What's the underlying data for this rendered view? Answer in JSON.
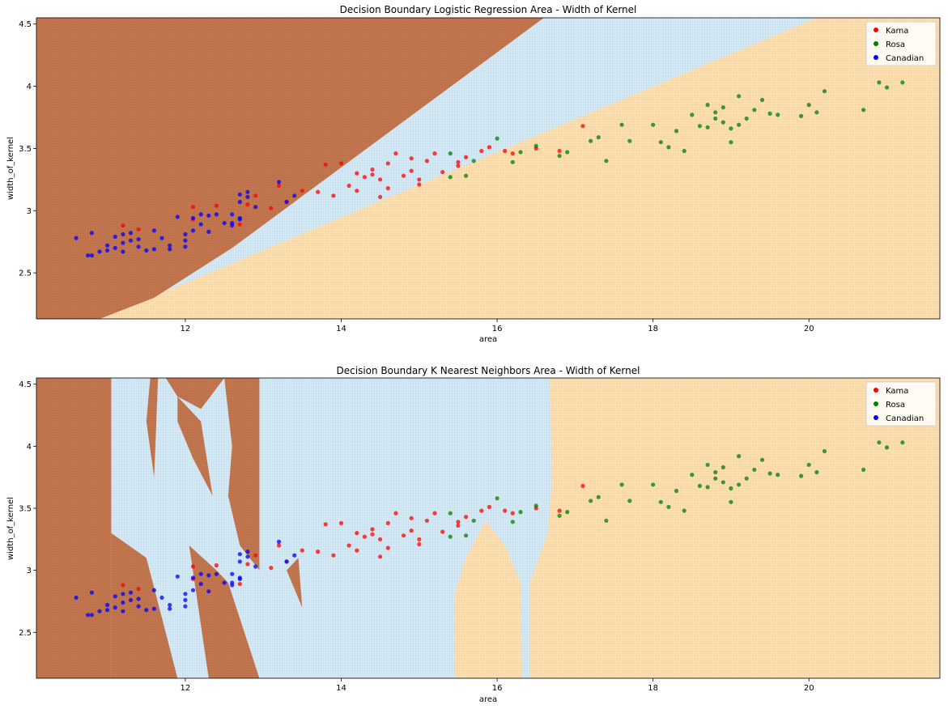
{
  "colors": {
    "kama": "#ff0000",
    "rosa": "#008000",
    "canadian": "#0000ff",
    "region_kama": "#c4764f",
    "region_rosa": "#ffe0b0",
    "region_canadian": "#d4ebf7"
  },
  "chart_data": [
    {
      "type": "scatter",
      "title": "Decision Boundary Logistic Regression Area - Width of Kernel",
      "xlabel": "area",
      "ylabel": "width_of_kernel",
      "xlim": [
        10.09,
        21.68
      ],
      "ylim": [
        2.13,
        4.55
      ],
      "xticks": [
        12,
        14,
        16,
        18,
        20
      ],
      "yticks": [
        2.5,
        3.0,
        3.5,
        4.0,
        4.5
      ],
      "grid": false,
      "legend": {
        "placement": "top-right",
        "entries": [
          "Kama",
          "Rosa",
          "Canadian"
        ]
      },
      "decision_regions": {
        "model": "logistic_regression",
        "kama_canadian_boundary": [
          [
            12.6,
            2.7
          ],
          [
            16.6,
            4.55
          ]
        ],
        "kama_rosa_boundary": [
          [
            10.9,
            2.13
          ],
          [
            20.1,
            4.55
          ]
        ]
      }
    },
    {
      "type": "scatter",
      "title": "Decision Boundary K Nearest Neighbors Area - Width of Kernel",
      "xlabel": "area",
      "ylabel": "width_of_kernel",
      "xlim": [
        10.09,
        21.68
      ],
      "ylim": [
        2.13,
        4.55
      ],
      "xticks": [
        12,
        14,
        16,
        18,
        20
      ],
      "yticks": [
        2.5,
        3.0,
        3.5,
        4.0,
        4.5
      ],
      "grid": false,
      "legend": {
        "placement": "top-right",
        "entries": [
          "Kama",
          "Rosa",
          "Canadian"
        ]
      },
      "decision_regions": {
        "model": "k_nearest_neighbors",
        "canadian_polygons": [
          [
            [
              10.09,
              4.55
            ],
            [
              11.0,
              4.55
            ],
            [
              11.0,
              2.13
            ],
            [
              10.09,
              2.13
            ]
          ],
          [
            [
              11.0,
              4.55
            ],
            [
              12.9,
              4.55
            ],
            [
              12.9,
              2.9
            ],
            [
              13.2,
              3.05
            ],
            [
              13.4,
              2.8
            ],
            [
              13.2,
              2.13
            ],
            [
              12.9,
              2.13
            ],
            [
              12.6,
              2.9
            ],
            [
              12.1,
              2.9
            ],
            [
              11.8,
              2.13
            ],
            [
              11.0,
              2.13
            ]
          ]
        ],
        "kama_polygons": [
          [
            [
              10.09,
              4.55
            ],
            [
              11.0,
              4.55
            ],
            [
              11.0,
              2.13
            ],
            [
              10.09,
              2.13
            ]
          ],
          [
            [
              11.55,
              4.55
            ],
            [
              11.7,
              4.55
            ],
            [
              11.55,
              3.9
            ],
            [
              11.55,
              4.55
            ]
          ]
        ],
        "rosa_polygons": [
          [
            [
              16.7,
              4.55
            ],
            [
              21.68,
              4.55
            ],
            [
              21.68,
              2.13
            ],
            [
              16.4,
              2.13
            ],
            [
              16.4,
              3.3
            ],
            [
              16.7,
              3.6
            ]
          ],
          [
            [
              15.45,
              2.13
            ],
            [
              16.3,
              2.13
            ],
            [
              16.3,
              3.0
            ],
            [
              15.9,
              3.3
            ],
            [
              15.45,
              2.9
            ]
          ]
        ]
      }
    }
  ],
  "scatter_points": {
    "kama": [
      [
        11.2,
        2.88
      ],
      [
        11.4,
        2.85
      ],
      [
        12.1,
        2.93
      ],
      [
        12.1,
        3.03
      ],
      [
        12.4,
        3.04
      ],
      [
        12.7,
        2.89
      ],
      [
        12.8,
        3.05
      ],
      [
        12.9,
        3.12
      ],
      [
        13.1,
        3.02
      ],
      [
        13.2,
        3.2
      ],
      [
        13.3,
        3.07
      ],
      [
        13.5,
        3.16
      ],
      [
        13.8,
        3.37
      ],
      [
        14.0,
        3.38
      ],
      [
        13.9,
        3.12
      ],
      [
        14.1,
        3.2
      ],
      [
        14.2,
        3.16
      ],
      [
        14.3,
        3.27
      ],
      [
        14.4,
        3.33
      ],
      [
        14.5,
        3.25
      ],
      [
        14.6,
        3.18
      ],
      [
        14.7,
        3.46
      ],
      [
        14.8,
        3.28
      ],
      [
        14.9,
        3.32
      ],
      [
        15.0,
        3.25
      ],
      [
        15.1,
        3.4
      ],
      [
        15.2,
        3.46
      ],
      [
        15.3,
        3.31
      ],
      [
        15.5,
        3.36
      ],
      [
        15.6,
        3.43
      ],
      [
        15.8,
        3.48
      ],
      [
        15.9,
        3.51
      ],
      [
        16.1,
        3.48
      ],
      [
        16.2,
        3.46
      ],
      [
        16.5,
        3.5
      ],
      [
        16.8,
        3.48
      ],
      [
        17.1,
        3.68
      ],
      [
        14.5,
        3.11
      ],
      [
        14.2,
        3.3
      ],
      [
        15.0,
        3.21
      ],
      [
        15.5,
        3.39
      ],
      [
        14.6,
        3.38
      ],
      [
        14.9,
        3.42
      ],
      [
        13.7,
        3.15
      ],
      [
        14.4,
        3.29
      ]
    ],
    "rosa": [
      [
        15.4,
        3.46
      ],
      [
        15.4,
        3.27
      ],
      [
        15.6,
        3.28
      ],
      [
        15.7,
        3.4
      ],
      [
        16.0,
        3.58
      ],
      [
        16.2,
        3.39
      ],
      [
        16.3,
        3.47
      ],
      [
        16.5,
        3.52
      ],
      [
        16.8,
        3.44
      ],
      [
        16.9,
        3.47
      ],
      [
        17.2,
        3.56
      ],
      [
        17.3,
        3.59
      ],
      [
        17.4,
        3.4
      ],
      [
        17.6,
        3.69
      ],
      [
        17.7,
        3.56
      ],
      [
        18.0,
        3.69
      ],
      [
        18.1,
        3.55
      ],
      [
        18.2,
        3.51
      ],
      [
        18.3,
        3.64
      ],
      [
        18.4,
        3.48
      ],
      [
        18.5,
        3.77
      ],
      [
        18.6,
        3.68
      ],
      [
        18.7,
        3.85
      ],
      [
        18.8,
        3.79
      ],
      [
        18.9,
        3.83
      ],
      [
        19.0,
        3.66
      ],
      [
        19.0,
        3.55
      ],
      [
        19.1,
        3.92
      ],
      [
        19.2,
        3.74
      ],
      [
        19.3,
        3.81
      ],
      [
        19.4,
        3.89
      ],
      [
        19.5,
        3.78
      ],
      [
        19.6,
        3.77
      ],
      [
        19.9,
        3.76
      ],
      [
        20.0,
        3.85
      ],
      [
        20.1,
        3.79
      ],
      [
        20.2,
        3.96
      ],
      [
        20.7,
        3.81
      ],
      [
        20.9,
        4.03
      ],
      [
        21.0,
        3.99
      ],
      [
        21.2,
        4.03
      ],
      [
        18.7,
        3.67
      ],
      [
        18.8,
        3.74
      ],
      [
        18.9,
        3.71
      ],
      [
        19.1,
        3.69
      ]
    ],
    "canadian": [
      [
        10.6,
        2.78
      ],
      [
        10.8,
        2.64
      ],
      [
        10.8,
        2.82
      ],
      [
        10.9,
        2.67
      ],
      [
        11.0,
        2.72
      ],
      [
        11.1,
        2.7
      ],
      [
        11.1,
        2.79
      ],
      [
        11.2,
        2.81
      ],
      [
        11.2,
        2.74
      ],
      [
        11.2,
        2.67
      ],
      [
        11.3,
        2.76
      ],
      [
        11.4,
        2.71
      ],
      [
        11.4,
        2.77
      ],
      [
        11.5,
        2.68
      ],
      [
        11.6,
        2.69
      ],
      [
        11.6,
        2.84
      ],
      [
        11.7,
        2.78
      ],
      [
        11.8,
        2.69
      ],
      [
        11.8,
        2.72
      ],
      [
        11.9,
        2.95
      ],
      [
        12.0,
        2.76
      ],
      [
        12.0,
        2.81
      ],
      [
        12.1,
        2.84
      ],
      [
        12.1,
        2.94
      ],
      [
        12.2,
        2.97
      ],
      [
        12.2,
        2.89
      ],
      [
        12.3,
        2.83
      ],
      [
        12.3,
        2.96
      ],
      [
        12.4,
        2.97
      ],
      [
        12.5,
        2.9
      ],
      [
        12.6,
        2.9
      ],
      [
        12.6,
        2.97
      ],
      [
        12.7,
        2.94
      ],
      [
        12.7,
        3.13
      ],
      [
        12.7,
        3.07
      ],
      [
        12.8,
        3.15
      ],
      [
        12.8,
        3.11
      ],
      [
        12.9,
        3.03
      ],
      [
        13.2,
        3.23
      ],
      [
        13.3,
        3.07
      ],
      [
        13.4,
        3.12
      ],
      [
        11.3,
        2.82
      ],
      [
        12.6,
        2.88
      ],
      [
        12.7,
        2.93
      ],
      [
        11.0,
        2.68
      ],
      [
        10.75,
        2.64
      ],
      [
        12.0,
        2.71
      ]
    ]
  }
}
